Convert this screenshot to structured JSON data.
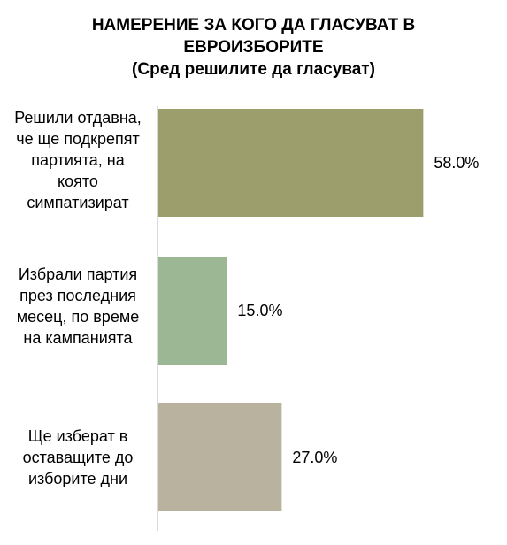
{
  "chart_data": {
    "type": "bar",
    "orientation": "horizontal",
    "title_lines": [
      "НАМЕРЕНИЕ ЗА КОГО ДА ГЛАСУВАТ В",
      "ЕВРОИЗБОРИТЕ",
      "(Сред решилите да гласуват)"
    ],
    "categories": [
      "Решили отдавна,\nче ще подкрепят\nпартията, на\nкоято\nсимпатизират",
      "Избрали партия\nпрез последния\nмесец, по време\nна кампанията",
      "Ще изберат в\nоставащите до\nизборите дни"
    ],
    "values": [
      58.0,
      15.0,
      27.0
    ],
    "value_labels": [
      "58.0%",
      "15.0%",
      "27.0%"
    ],
    "colors": [
      "#9c9f6c",
      "#9cb794",
      "#b9b29f"
    ],
    "xlim": [
      0,
      68
    ],
    "grid": false,
    "legend": "none"
  }
}
